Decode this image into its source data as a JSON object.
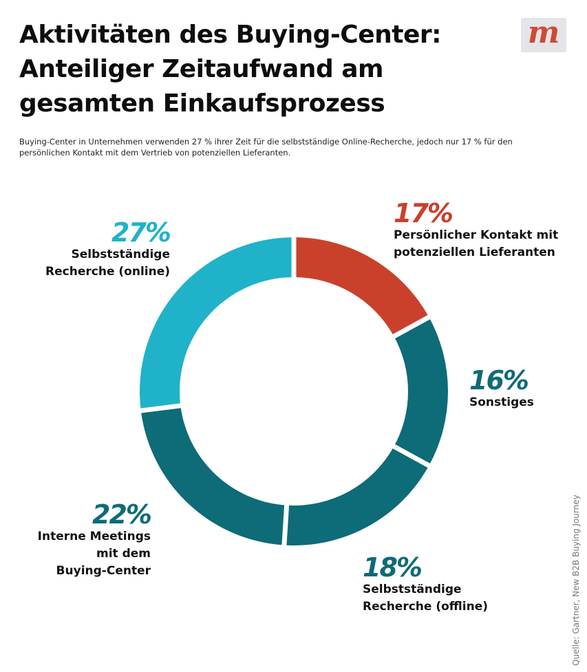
{
  "title_lines": [
    "Aktivitäten des Buying-Center:",
    "Anteiliger Zeitaufwand am",
    "gesamten Einkaufsprozess"
  ],
  "subtitle": "Buying-Center in Unternehmen verwenden 27 % ihrer Zeit für die selbstständige Online-Recherche, jedoch nur 17 % für den persönlichen Kontakt mit dem Vertrieb von potenziellen Lieferanten.",
  "logo": {
    "letter": "m",
    "color": "#cf4a34"
  },
  "source": "Quelle: Gartner, New B2B Buying Journey",
  "chart_data": {
    "type": "pie",
    "variant": "donut",
    "title": "Aktivitäten des Buying-Center: Anteiliger Zeitaufwand am gesamten Einkaufsprozess",
    "unit": "%",
    "slices": [
      {
        "label_lines": [
          "Persönlicher Kontakt mit",
          "potenziellen Lieferanten"
        ],
        "value": 17,
        "display": "17%",
        "color": "#c9412b"
      },
      {
        "label_lines": [
          "Sonstiges"
        ],
        "value": 16,
        "display": "16%",
        "color": "#0e6b78"
      },
      {
        "label_lines": [
          "Selbstständige",
          "Recherche (offline)"
        ],
        "value": 18,
        "display": "18%",
        "color": "#0e6b78"
      },
      {
        "label_lines": [
          "Interne Meetings",
          "mit dem",
          "Buying-Center"
        ],
        "value": 22,
        "display": "22%",
        "color": "#0e6b78"
      },
      {
        "label_lines": [
          "Selbstständige",
          "Recherche (online)"
        ],
        "value": 27,
        "display": "27%",
        "color": "#20b2c9"
      }
    ]
  }
}
